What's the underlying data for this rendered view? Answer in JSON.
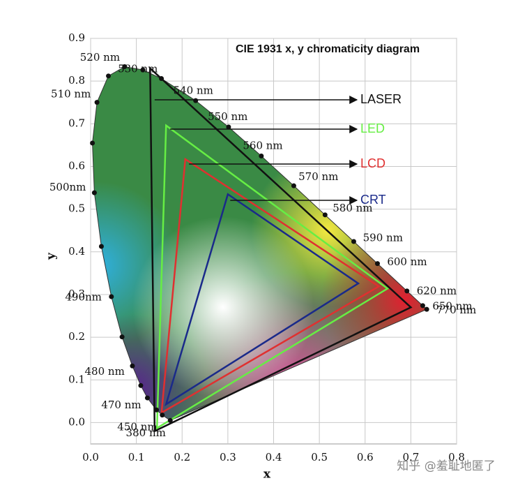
{
  "chart_data": {
    "type": "chromaticity",
    "title": "CIE 1931 x, y chromaticity diagram",
    "x_label": "x",
    "y_label": "y",
    "xlim": [
      0,
      0.8
    ],
    "ylim": [
      -0.05,
      0.9
    ],
    "xticks": [
      {
        "value": 0,
        "label": "0.0"
      },
      {
        "value": 0.1,
        "label": "0.1"
      },
      {
        "value": 0.2,
        "label": "0.2"
      },
      {
        "value": 0.3,
        "label": "0.3"
      },
      {
        "value": 0.4,
        "label": "0.4"
      },
      {
        "value": 0.5,
        "label": "0.5"
      },
      {
        "value": 0.6,
        "label": "0.6"
      },
      {
        "value": 0.7,
        "label": "0.7"
      },
      {
        "value": 0.8,
        "label": "0.8"
      }
    ],
    "yticks": [
      {
        "value": 0,
        "label": "0.0"
      },
      {
        "value": 0.1,
        "label": "0.1"
      },
      {
        "value": 0.2,
        "label": "0.2"
      },
      {
        "value": 0.3,
        "label": "0.3"
      },
      {
        "value": 0.4,
        "label": "0.4"
      },
      {
        "value": 0.5,
        "label": "0.5"
      },
      {
        "value": 0.6,
        "label": "0.6"
      },
      {
        "value": 0.7,
        "label": "0.7"
      },
      {
        "value": 0.8,
        "label": "0.8"
      },
      {
        "value": 0.9,
        "label": "0.9"
      }
    ],
    "grid": true,
    "spectral_locus": {
      "labels": [
        "380 nm",
        "450 nm",
        null,
        "470 nm",
        null,
        "480 nm",
        null,
        "490nm",
        null,
        "500nm",
        null,
        "510 nm",
        null,
        "520 nm",
        null,
        "530 nm",
        "540 nm",
        "550 nm",
        "560 nm",
        "570 nm",
        "580 nm",
        "590 nm",
        "600 nm",
        "620 nm",
        "650 nm",
        "770 nm"
      ],
      "x": [
        0.1741,
        0.1566,
        0.144,
        0.1241,
        0.1096,
        0.0913,
        0.0687,
        0.0454,
        0.0235,
        0.0082,
        0.0039,
        0.0139,
        0.0389,
        0.0743,
        0.1142,
        0.1547,
        0.2296,
        0.3016,
        0.3731,
        0.4441,
        0.5125,
        0.5752,
        0.627,
        0.6915,
        0.726,
        0.7347
      ],
      "y": [
        0.005,
        0.0177,
        0.0297,
        0.0578,
        0.0868,
        0.1327,
        0.2007,
        0.295,
        0.4127,
        0.5384,
        0.6548,
        0.7502,
        0.812,
        0.8338,
        0.8262,
        0.8059,
        0.7543,
        0.6923,
        0.6245,
        0.5547,
        0.4866,
        0.4242,
        0.3725,
        0.3083,
        0.274,
        0.2653
      ]
    },
    "series": [
      {
        "name": "LASER",
        "color": "#111111",
        "x": [
          0.13,
          0.7,
          0.14
        ],
        "y": [
          0.83,
          0.27,
          -0.02
        ]
      },
      {
        "name": "LED",
        "color": "#66ee44",
        "x": [
          0.165,
          0.649,
          0.145
        ],
        "y": [
          0.696,
          0.314,
          -0.013
        ]
      },
      {
        "name": "LCD",
        "color": "#e03030",
        "x": [
          0.207,
          0.63,
          0.155
        ],
        "y": [
          0.617,
          0.319,
          0.023
        ]
      },
      {
        "name": "CRT",
        "color": "#1a2a8a",
        "x": [
          0.3,
          0.585,
          0.165
        ],
        "y": [
          0.535,
          0.326,
          0.043
        ]
      }
    ],
    "watermark": "知乎 @羞耻地匿了"
  }
}
